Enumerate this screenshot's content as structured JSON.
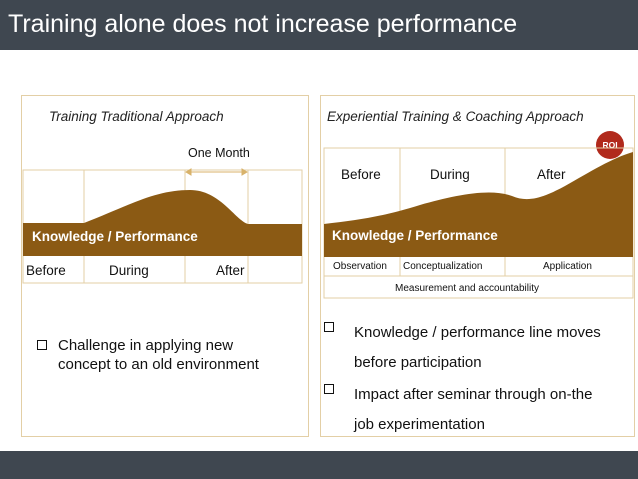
{
  "slide": {
    "title": "Training alone does not increase performance"
  },
  "left_panel": {
    "heading": "Training Traditional Approach",
    "one_month_label": "One Month",
    "band_label": "Knowledge / Performance",
    "phases": [
      "Before",
      "During",
      "After"
    ],
    "bullet": "Challenge in applying new concept to an old environment"
  },
  "right_panel": {
    "heading": "Experiential Training & Coaching Approach",
    "roi_label": "ROI",
    "phases": [
      "Before",
      "During",
      "After"
    ],
    "band_label": "Knowledge / Performance",
    "sub_phases": [
      "Observation",
      "Conceptualization",
      "Application"
    ],
    "measurement_label": "Measurement and accountability",
    "bullets": [
      "Knowledge / performance line moves before participation",
      "Impact after seminar through on-the job experimentation"
    ]
  },
  "colors": {
    "header_bg": "#3f4750",
    "band": "#8b5a14",
    "panel_border": "#e3cfa6",
    "roi": "#b12a1c"
  }
}
